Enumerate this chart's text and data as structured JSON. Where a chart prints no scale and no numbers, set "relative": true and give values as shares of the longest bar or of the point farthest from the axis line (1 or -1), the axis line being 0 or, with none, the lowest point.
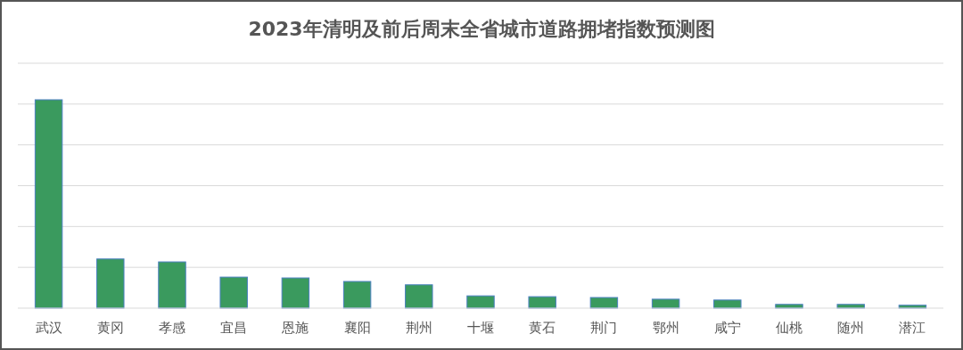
{
  "chart_data": {
    "type": "bar",
    "title": "2023年清明及前后周末全省城市道路拥堵指数预测图",
    "categories": [
      "武汉",
      "黄冈",
      "孝感",
      "宜昌",
      "恩施",
      "襄阳",
      "荆州",
      "十堰",
      "黄石",
      "荆门",
      "鄂州",
      "咸宁",
      "仙桃",
      "随州",
      "潜江"
    ],
    "values": [
      1,
      0.236,
      0.222,
      0.149,
      0.145,
      0.128,
      0.112,
      0.059,
      0.055,
      0.051,
      0.043,
      0.039,
      0.018,
      0.018,
      0.014
    ],
    "color": "#3a9a5e",
    "relative": true,
    "grid": "y"
  }
}
